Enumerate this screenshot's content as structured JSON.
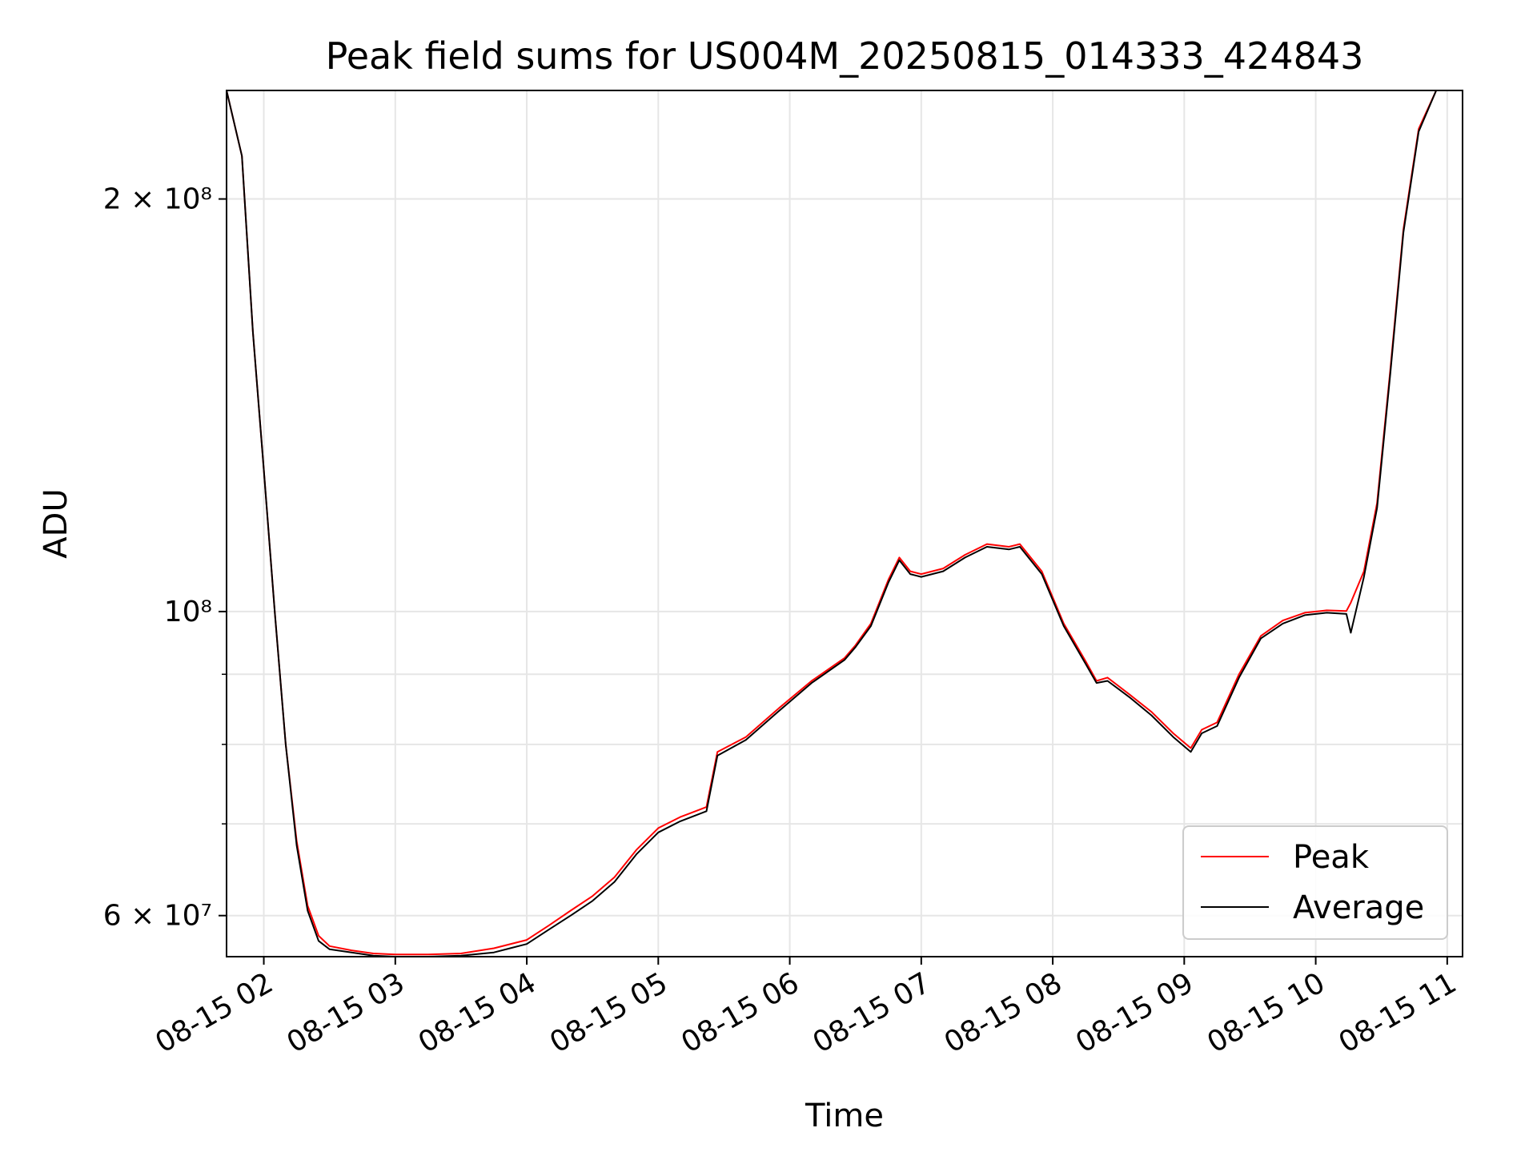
{
  "chart_data": {
    "type": "line",
    "title": "Peak field sums for US004M_20250815_014333_424843",
    "xlabel": "Time",
    "ylabel": "ADU",
    "y_scale": "log",
    "ylim": [
      56000000,
      240000000
    ],
    "xlim": [
      "2025-08-15 01:43",
      "2025-08-15 11:07"
    ],
    "grid": true,
    "legend_position": "bottom-right",
    "x_ticks": [
      {
        "value": "2025-08-15 02:00",
        "label": "08-15 02"
      },
      {
        "value": "2025-08-15 03:00",
        "label": "08-15 03"
      },
      {
        "value": "2025-08-15 04:00",
        "label": "08-15 04"
      },
      {
        "value": "2025-08-15 05:00",
        "label": "08-15 05"
      },
      {
        "value": "2025-08-15 06:00",
        "label": "08-15 06"
      },
      {
        "value": "2025-08-15 07:00",
        "label": "08-15 07"
      },
      {
        "value": "2025-08-15 08:00",
        "label": "08-15 08"
      },
      {
        "value": "2025-08-15 09:00",
        "label": "08-15 09"
      },
      {
        "value": "2025-08-15 10:00",
        "label": "08-15 10"
      },
      {
        "value": "2025-08-15 11:00",
        "label": "08-15 11"
      }
    ],
    "y_ticks": [
      {
        "value": 60000000,
        "label": "6 × 10⁷"
      },
      {
        "value": 100000000,
        "label": "10⁸"
      },
      {
        "value": 200000000,
        "label": "2 × 10⁸"
      }
    ],
    "y_minor_ticks": [
      70000000,
      80000000,
      90000000
    ],
    "x": [
      "2025-08-15 01:43",
      "2025-08-15 01:50",
      "2025-08-15 01:55",
      "2025-08-15 02:00",
      "2025-08-15 02:05",
      "2025-08-15 02:10",
      "2025-08-15 02:15",
      "2025-08-15 02:20",
      "2025-08-15 02:25",
      "2025-08-15 02:30",
      "2025-08-15 02:40",
      "2025-08-15 02:50",
      "2025-08-15 03:00",
      "2025-08-15 03:15",
      "2025-08-15 03:30",
      "2025-08-15 03:45",
      "2025-08-15 04:00",
      "2025-08-15 04:10",
      "2025-08-15 04:20",
      "2025-08-15 04:30",
      "2025-08-15 04:40",
      "2025-08-15 04:50",
      "2025-08-15 05:00",
      "2025-08-15 05:10",
      "2025-08-15 05:22",
      "2025-08-15 05:27",
      "2025-08-15 05:40",
      "2025-08-15 05:55",
      "2025-08-15 06:10",
      "2025-08-15 06:25",
      "2025-08-15 06:30",
      "2025-08-15 06:37",
      "2025-08-15 06:45",
      "2025-08-15 06:50",
      "2025-08-15 06:55",
      "2025-08-15 07:00",
      "2025-08-15 07:10",
      "2025-08-15 07:20",
      "2025-08-15 07:30",
      "2025-08-15 07:40",
      "2025-08-15 07:45",
      "2025-08-15 07:55",
      "2025-08-15 08:05",
      "2025-08-15 08:15",
      "2025-08-15 08:20",
      "2025-08-15 08:25",
      "2025-08-15 08:35",
      "2025-08-15 08:45",
      "2025-08-15 08:55",
      "2025-08-15 09:03",
      "2025-08-15 09:08",
      "2025-08-15 09:15",
      "2025-08-15 09:25",
      "2025-08-15 09:35",
      "2025-08-15 09:45",
      "2025-08-15 09:55",
      "2025-08-15 10:05",
      "2025-08-15 10:14",
      "2025-08-15 10:16",
      "2025-08-15 10:22",
      "2025-08-15 10:28",
      "2025-08-15 10:34",
      "2025-08-15 10:40",
      "2025-08-15 10:47",
      "2025-08-15 10:55",
      "2025-08-15 11:00"
    ],
    "series": [
      {
        "name": "Peak",
        "color": "#ff0000",
        "values": [
          240000000,
          215000000,
          160000000,
          127000000,
          100000000,
          80000000,
          68000000,
          61000000,
          58000000,
          57000000,
          56600000,
          56300000,
          56200000,
          56200000,
          56300000,
          56800000,
          57600000,
          59000000,
          60500000,
          62000000,
          64000000,
          67000000,
          69500000,
          70800000,
          72000000,
          79000000,
          81000000,
          85000000,
          89000000,
          92500000,
          94500000,
          98000000,
          105500000,
          109500000,
          107000000,
          106500000,
          107500000,
          110000000,
          112000000,
          111500000,
          112000000,
          107000000,
          98000000,
          92000000,
          89000000,
          89500000,
          87000000,
          84500000,
          81500000,
          79500000,
          82000000,
          83000000,
          90000000,
          96000000,
          98500000,
          99800000,
          100200000,
          100100000,
          101500000,
          107000000,
          120000000,
          150000000,
          190000000,
          225000000,
          240000000,
          240000000
        ]
      },
      {
        "name": "Average",
        "color": "#000000",
        "values": [
          240000000,
          215000000,
          160000000,
          127000000,
          100000000,
          80000000,
          67500000,
          60500000,
          57500000,
          56700000,
          56400000,
          56100000,
          56000000,
          56000000,
          56100000,
          56400000,
          57200000,
          58600000,
          60000000,
          61500000,
          63500000,
          66500000,
          69000000,
          70300000,
          71500000,
          78500000,
          80600000,
          84600000,
          88700000,
          92200000,
          94200000,
          97600000,
          105000000,
          109000000,
          106500000,
          106000000,
          107000000,
          109500000,
          111500000,
          111000000,
          111500000,
          106500000,
          97600000,
          91600000,
          88700000,
          89000000,
          86600000,
          84000000,
          81000000,
          79000000,
          81500000,
          82500000,
          89500000,
          95600000,
          98000000,
          99400000,
          99800000,
          99600000,
          96500000,
          106000000,
          119000000,
          149000000,
          189000000,
          224000000,
          240000000,
          240000000
        ]
      }
    ]
  }
}
